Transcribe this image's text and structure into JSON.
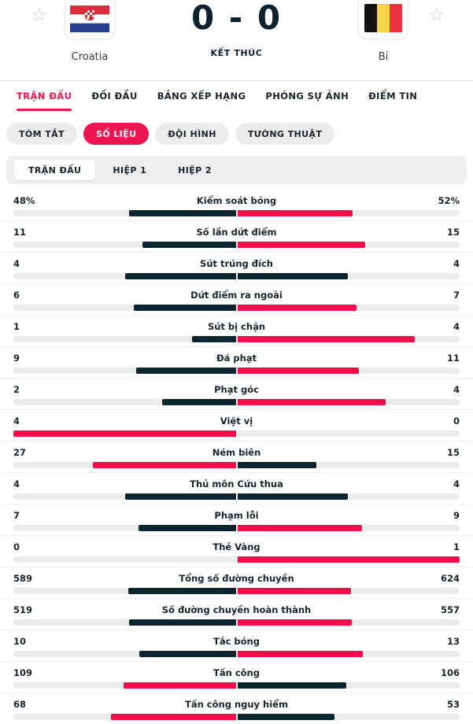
{
  "header": {
    "score": "0 - 0",
    "status": "KẾT THÚC",
    "home": {
      "name": "Croatia"
    },
    "away": {
      "name": "Bỉ"
    },
    "favorite_icon": "star-outline"
  },
  "main_tabs": {
    "items": [
      {
        "label": "TRẬN ĐẤU",
        "active": true
      },
      {
        "label": "ĐỐI ĐẦU",
        "active": false
      },
      {
        "label": "BẢNG XẾP HẠNG",
        "active": false
      },
      {
        "label": "PHÓNG SỰ ẢNH",
        "active": false
      },
      {
        "label": "ĐIỂM TIN",
        "active": false
      }
    ]
  },
  "sub_tabs": {
    "items": [
      {
        "label": "TÓM TẮT",
        "active": false
      },
      {
        "label": "SỐ LIỆU",
        "active": true
      },
      {
        "label": "ĐỘI HÌNH",
        "active": false
      },
      {
        "label": "TƯỜNG THUẬT",
        "active": false
      }
    ]
  },
  "period_tabs": {
    "items": [
      {
        "label": "TRẬN ĐẤU",
        "active": true
      },
      {
        "label": "HIỆP 1",
        "active": false
      },
      {
        "label": "HIỆP 2",
        "active": false
      }
    ]
  },
  "stats": [
    {
      "label": "Kiểm soát bóng",
      "home": "48%",
      "away": "52%"
    },
    {
      "label": "Số lần dứt điểm",
      "home": "11",
      "away": "15"
    },
    {
      "label": "Sút trúng đích",
      "home": "4",
      "away": "4"
    },
    {
      "label": "Dứt điểm ra ngoài",
      "home": "6",
      "away": "7"
    },
    {
      "label": "Sút bị chặn",
      "home": "1",
      "away": "4"
    },
    {
      "label": "Đá phạt",
      "home": "9",
      "away": "11"
    },
    {
      "label": "Phạt góc",
      "home": "2",
      "away": "4"
    },
    {
      "label": "Việt vị",
      "home": "4",
      "away": "0"
    },
    {
      "label": "Ném biên",
      "home": "27",
      "away": "15"
    },
    {
      "label": "Thủ môn Cứu thua",
      "home": "4",
      "away": "4"
    },
    {
      "label": "Phạm lỗi",
      "home": "7",
      "away": "9"
    },
    {
      "label": "Thẻ Vàng",
      "home": "0",
      "away": "1"
    },
    {
      "label": "Tổng số đường chuyền",
      "home": "589",
      "away": "624"
    },
    {
      "label": "Số đường chuyền hoàn thành",
      "home": "519",
      "away": "557"
    },
    {
      "label": "Tắc bóng",
      "home": "10",
      "away": "13"
    },
    {
      "label": "Tấn công",
      "home": "109",
      "away": "106"
    },
    {
      "label": "Tấn công nguy hiểm",
      "home": "68",
      "away": "53"
    }
  ],
  "colors": {
    "accent": "#ee1550",
    "bar_leader": "#f40d4a",
    "bar_dark": "#0d2531",
    "bar_track": "#ebebeb"
  }
}
